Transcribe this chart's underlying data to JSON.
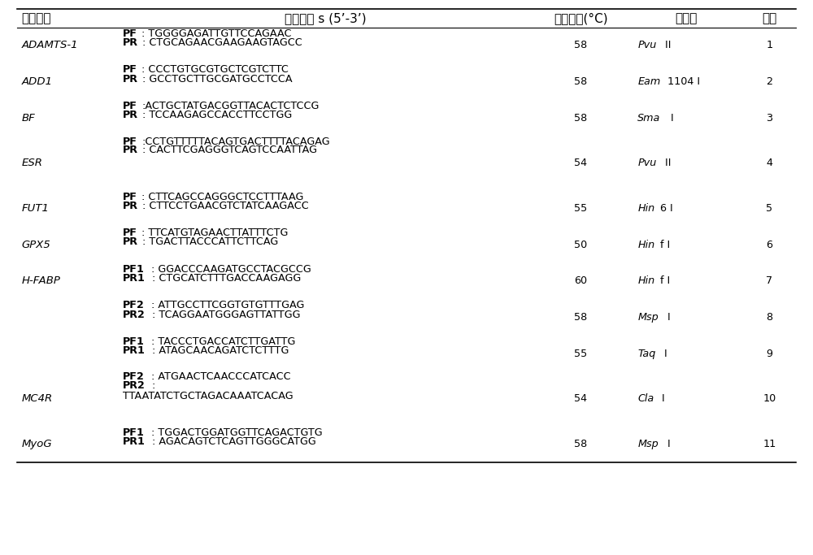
{
  "figsize": [
    10.0,
    6.83
  ],
  "dpi": 100,
  "bg": "#ffffff",
  "header_row": [
    "基因名称",
    "引物序列 s (5’-3’)",
    "退火温度(°C)",
    "内切酶",
    "位点"
  ],
  "rows": [
    {
      "gene": "ADAMTS-1",
      "primers": [
        [
          "PF",
          ": TGGGGAGATTGTTCCAGAAC"
        ],
        [
          "PR",
          ": CTGCAGAACGAAGAAGTAGCC"
        ]
      ],
      "temp": "58",
      "enz_i": "Pvu",
      "enz_r": " II",
      "site": "1",
      "nlines": 2
    },
    {
      "gene": "ADD1",
      "primers": [
        [
          "PF",
          ": CCCTGTGCGTGCTCGTCTTC"
        ],
        [
          "PR",
          ": GCCTGCTTGCGATGCCTCCA"
        ]
      ],
      "temp": "58",
      "enz_i": "Eam",
      "enz_r": "1104 I",
      "site": "2",
      "nlines": 2
    },
    {
      "gene": "BF",
      "primers": [
        [
          "PF",
          ":ACTGCTATGACGGTTACACTCTCCG"
        ],
        [
          "PR",
          ": TCCAAGAGCCACCTTCCTGG"
        ]
      ],
      "temp": "58",
      "enz_i": "Sma",
      "enz_r": " I",
      "site": "3",
      "nlines": 2
    },
    {
      "gene": "ESR",
      "primers": [
        [
          "PF",
          ":CCTGTTTTTACAGTGACTTTTACAGAG"
        ],
        [
          "PR",
          ": CACTTCGAGGGTCAGTCCAATTAG"
        ]
      ],
      "temp": "54",
      "enz_i": "Pvu",
      "enz_r": " II",
      "site": "4",
      "nlines": 3
    },
    {
      "gene": "FUT1",
      "primers": [
        [
          "PF",
          ": CTTCAGCCAGGGCTCCTTTAAG"
        ],
        [
          "PR",
          ": CTTCCTGAACGTCTATCAAGACC"
        ]
      ],
      "temp": "55",
      "enz_i": "Hin",
      "enz_r": "6 I",
      "site": "5",
      "nlines": 2
    },
    {
      "gene": "GPX5",
      "primers": [
        [
          "PF",
          ": TTCATGTAGAACTTATTTCTG"
        ],
        [
          "PR",
          ": TGACTTACCCATTCTTCAG"
        ]
      ],
      "temp": "50",
      "enz_i": "Hin",
      "enz_r": "f I",
      "site": "6",
      "nlines": 2
    },
    {
      "gene": "H-FABP",
      "primers": [
        [
          "PF1",
          ": GGACCCAAGATGCCTACGCCG"
        ],
        [
          "PR1",
          ": CTGCATCTTTGACCAAGAGG"
        ]
      ],
      "temp": "60",
      "enz_i": "Hin",
      "enz_r": "f I",
      "site": "7",
      "nlines": 2
    },
    {
      "gene": "",
      "primers": [
        [
          "PF2",
          ": ATTGCCTTCGGTGTGTTTGAG"
        ],
        [
          "PR2",
          ": TCAGGAATGGGAGTTATTGG"
        ]
      ],
      "temp": "58",
      "enz_i": "Msp",
      "enz_r": " I",
      "site": "8",
      "nlines": 2
    },
    {
      "gene": "",
      "primers": [
        [
          "PF1",
          ": TACCCTGACCATCTTGATTG"
        ],
        [
          "PR1",
          ": ATAGCAACAGATCTCTTTG"
        ]
      ],
      "temp": "55",
      "enz_i": "Taq",
      "enz_r": " I",
      "site": "9",
      "nlines": 2
    },
    {
      "gene": "MC4R",
      "primers": [
        [
          "PF2",
          ": ATGAACTCAACCCATCACC"
        ],
        [
          "PR2",
          ":\nTTAATATCTGCTAGACAAATCACAG"
        ]
      ],
      "temp": "54",
      "enz_i": "Cla",
      "enz_r": " I",
      "site": "10",
      "nlines": 3
    },
    {
      "gene": "MyoG",
      "primers": [
        [
          "PF1",
          ": TGGACTGGATGGTTCAGACTGTG"
        ],
        [
          "PR1",
          ": AGACAGTCTCAGTTGGGCATGG"
        ]
      ],
      "temp": "58",
      "enz_i": "Msp",
      "enz_r": " I",
      "site": "11",
      "nlines": 2
    }
  ],
  "line_color": "#000000",
  "hdr_fs": 11,
  "body_fs": 9.2,
  "gene_fs": 9.5
}
